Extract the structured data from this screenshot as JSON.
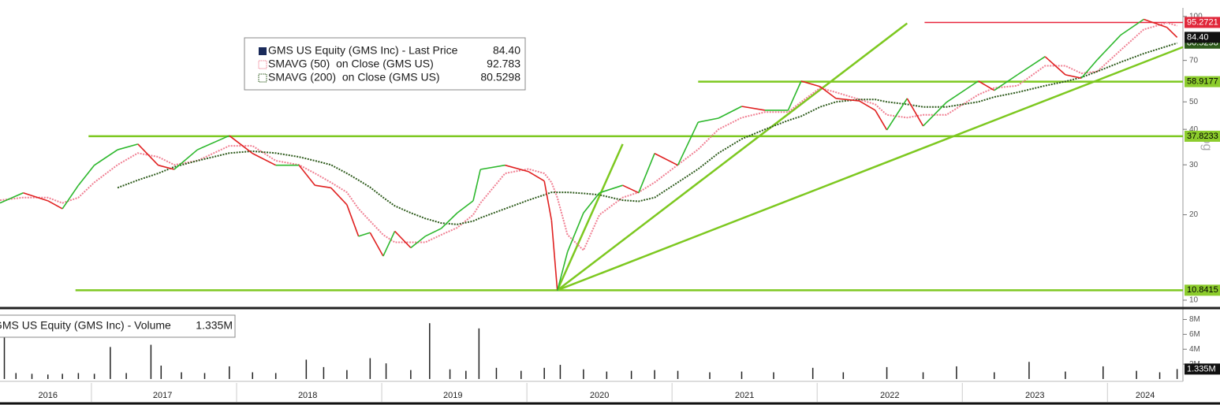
{
  "chart_data": [
    {
      "type": "line",
      "log_scale": true,
      "scale_label": "Log",
      "xlim": [
        2016.37,
        2024.52
      ],
      "ylim": [
        9.56,
        104.5
      ],
      "yticks": [
        10,
        20,
        30,
        40,
        50,
        70,
        100
      ],
      "x": [
        2016.37,
        2016.53,
        2016.7,
        2016.8,
        2016.91,
        2017.02,
        2017.18,
        2017.32,
        2017.46,
        2017.57,
        2017.73,
        2017.95,
        2018.11,
        2018.27,
        2018.43,
        2018.54,
        2018.65,
        2018.76,
        2018.84,
        2018.92,
        2019.01,
        2019.09,
        2019.2,
        2019.3,
        2019.41,
        2019.52,
        2019.63,
        2019.68,
        2019.85,
        2020.01,
        2020.12,
        2020.17,
        2020.21,
        2020.28,
        2020.39,
        2020.5,
        2020.66,
        2020.77,
        2020.88,
        2021.04,
        2021.18,
        2021.32,
        2021.48,
        2021.64,
        2021.8,
        2021.89,
        2022.02,
        2022.13,
        2022.29,
        2022.4,
        2022.48,
        2022.62,
        2022.73,
        2022.89,
        2023.11,
        2023.22,
        2023.38,
        2023.57,
        2023.71,
        2023.82,
        2023.93,
        2024.09,
        2024.25,
        2024.41,
        2024.48
      ],
      "series": [
        {
          "name": "GMS US Equity (GMS Inc) - Last Price",
          "color": "#2db82d",
          "down_color": "#e02020",
          "legend_value": {
            "value": 84.4,
            "label": "84.40"
          },
          "values": [
            22.0,
            23.9,
            22.4,
            21.0,
            25.4,
            29.9,
            33.9,
            35.5,
            29.9,
            28.9,
            33.9,
            38.0,
            32.9,
            29.9,
            29.9,
            25.4,
            24.9,
            21.7,
            16.8,
            17.3,
            14.3,
            17.5,
            15.3,
            16.8,
            17.9,
            20.3,
            22.4,
            28.9,
            29.9,
            28.4,
            26.3,
            19.1,
            10.8,
            14.8,
            20.3,
            23.9,
            25.4,
            23.9,
            32.9,
            29.9,
            42.4,
            43.8,
            48.2,
            46.7,
            46.7,
            59.2,
            56.6,
            51.4,
            50.4,
            46.7,
            39.8,
            51.4,
            41.1,
            49.8,
            59.2,
            54.9,
            62.3,
            72.2,
            62.3,
            60.6,
            70.4,
            85.9,
            97.7,
            91.5,
            84.4
          ]
        },
        {
          "name": "SMAVG (50)  on Close (GMS US)",
          "color": "#f07f92",
          "legend_value": 92.783,
          "values": [
            22.5,
            23,
            23,
            22,
            23,
            26,
            30,
            33,
            32,
            30,
            31,
            35,
            35,
            31,
            30,
            28,
            26,
            24,
            21,
            19,
            17,
            16,
            16,
            16,
            17,
            18,
            20,
            22,
            28,
            29,
            28,
            26,
            23,
            17,
            15,
            20,
            23,
            24,
            26,
            30,
            34,
            40,
            44,
            46,
            46,
            50,
            56,
            54,
            51,
            49,
            45,
            44,
            45,
            45,
            53,
            56,
            57,
            67,
            67,
            63,
            64,
            76,
            90,
            95,
            92.783
          ]
        },
        {
          "name": "SMAVG (200)  on Close (GMS US)",
          "color": "#2d5a1b",
          "legend_value": 80.5298,
          "values": [
            null,
            null,
            null,
            null,
            null,
            null,
            24.9,
            26.5,
            28,
            29.5,
            31,
            33,
            33.5,
            33,
            32,
            31,
            30,
            28,
            26.5,
            25,
            23,
            21.5,
            20.3,
            19.4,
            18.7,
            18.5,
            19,
            19.5,
            21,
            22.5,
            23.5,
            24,
            24,
            24,
            23.8,
            23.5,
            22.5,
            22.3,
            23,
            26,
            29,
            33,
            37,
            40,
            43,
            44.5,
            48,
            50,
            51,
            51,
            50,
            49,
            48,
            48,
            50,
            52,
            54,
            57,
            59,
            61,
            64,
            69,
            74,
            78.5,
            80.5298
          ]
        }
      ],
      "levels": [
        {
          "value": 95.2721,
          "color": "#e8233b",
          "label_color": "#e0273a",
          "text_color": "#ffffff",
          "start": 2022.74
        },
        {
          "value": 58.9177,
          "color": "#7dc820",
          "label_color": "#8ccc2c",
          "text_color": "#000000",
          "start": 2021.18
        },
        {
          "value": 37.8233,
          "color": "#7dc820",
          "label_color": "#8ccc2c",
          "text_color": "#000000",
          "start": 2016.98
        },
        {
          "value": 10.8415,
          "color": "#7dc820",
          "label_color": "#8ccc2c",
          "text_color": "#000000",
          "start": 2016.89
        }
      ],
      "trend_color": "#7dc820",
      "trend_lines": [
        {
          "from": [
            2020.21,
            10.84
          ],
          "to": [
            2022.62,
            94.6
          ]
        },
        {
          "from": [
            2020.21,
            10.84
          ],
          "to": [
            2020.66,
            35.5
          ]
        },
        {
          "from": [
            2020.21,
            10.84
          ],
          "to": [
            2024.52,
            78.0
          ]
        }
      ]
    },
    {
      "type": "bar",
      "name": "GMS US Equity (GMS Inc) - Volume",
      "color": "#222222",
      "legend_value": {
        "value": 1335000,
        "label": "1.335M"
      },
      "xlim": [
        2016.37,
        2024.52
      ],
      "ylim": [
        0,
        9000000
      ],
      "yticks": [
        {
          "value": 2000000,
          "label": "2M"
        },
        {
          "value": 4000000,
          "label": "4M"
        },
        {
          "value": 6000000,
          "label": "6M"
        },
        {
          "value": 8000000,
          "label": "8M"
        }
      ],
      "xticks": [
        {
          "value": 2016.7,
          "label": "2016"
        },
        {
          "value": 2017.49,
          "label": "2017"
        },
        {
          "value": 2018.49,
          "label": "2018"
        },
        {
          "value": 2019.49,
          "label": "2019"
        },
        {
          "value": 2020.5,
          "label": "2020"
        },
        {
          "value": 2021.5,
          "label": "2021"
        },
        {
          "value": 2022.5,
          "label": "2022"
        },
        {
          "value": 2023.5,
          "label": "2023"
        },
        {
          "value": 2024.26,
          "label": "2024"
        }
      ],
      "xminor": [
        2017,
        2018,
        2019,
        2020,
        2021,
        2022,
        2023,
        2024
      ],
      "x": [
        2016.4,
        2016.48,
        2016.59,
        2016.7,
        2016.8,
        2016.91,
        2017.02,
        2017.13,
        2017.24,
        2017.41,
        2017.48,
        2017.62,
        2017.78,
        2017.95,
        2018.11,
        2018.27,
        2018.48,
        2018.6,
        2018.76,
        2018.92,
        2019.03,
        2019.2,
        2019.33,
        2019.47,
        2019.58,
        2019.67,
        2019.79,
        2019.96,
        2020.12,
        2020.23,
        2020.39,
        2020.55,
        2020.72,
        2020.88,
        2021.04,
        2021.26,
        2021.48,
        2021.7,
        2021.97,
        2022.18,
        2022.48,
        2022.73,
        2022.96,
        2023.22,
        2023.46,
        2023.71,
        2023.97,
        2024.2,
        2024.36,
        2024.48
      ],
      "values": [
        5600000,
        800000,
        700000,
        600000,
        700000,
        800000,
        700000,
        4300000,
        800000,
        4600000,
        1800000,
        900000,
        800000,
        1700000,
        900000,
        800000,
        2600000,
        1600000,
        1200000,
        2800000,
        2100000,
        1200000,
        7500000,
        1300000,
        1100000,
        6800000,
        1500000,
        1100000,
        1500000,
        1900000,
        1300000,
        1000000,
        1100000,
        1200000,
        1100000,
        900000,
        1000000,
        900000,
        1500000,
        900000,
        1600000,
        900000,
        1700000,
        900000,
        2300000,
        1000000,
        1700000,
        1100000,
        900000,
        1335000
      ]
    }
  ]
}
